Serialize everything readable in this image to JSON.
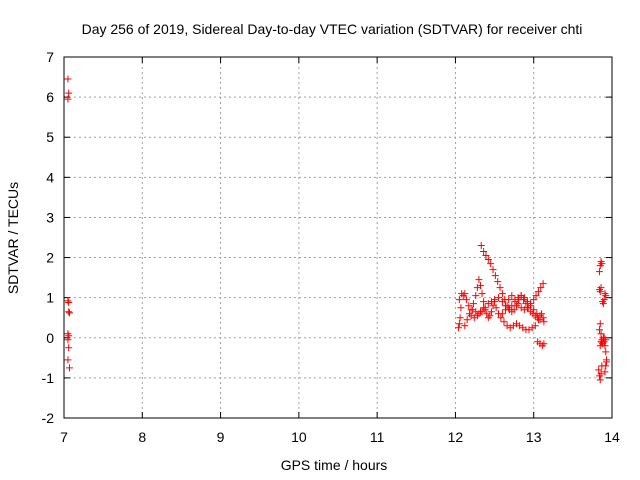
{
  "chart_data": {
    "type": "scatter",
    "title": "Day 256 of 2019, Sidereal Day-to-day VTEC variation (SDTVAR) for receiver chti",
    "xlabel": "GPS time / hours",
    "ylabel": "SDTVAR / TECUs",
    "xlim": [
      7,
      14
    ],
    "ylim": [
      -2,
      7
    ],
    "x_ticks": [
      "7",
      "8",
      "9",
      "10",
      "11",
      "12",
      "13",
      "14"
    ],
    "y_ticks": [
      "-2",
      "-1",
      "0",
      "1",
      "2",
      "3",
      "4",
      "5",
      "6",
      "7"
    ],
    "grid": true,
    "marker": "+",
    "color": "#ff0000",
    "series": [
      {
        "points": [
          [
            7.05,
            6.45
          ],
          [
            7.06,
            6.1
          ],
          [
            7.05,
            5.95
          ],
          [
            7.05,
            0.92
          ],
          [
            7.06,
            0.88
          ],
          [
            7.06,
            0.65
          ],
          [
            7.07,
            0.62
          ],
          [
            7.05,
            0.1
          ],
          [
            7.06,
            0.05
          ],
          [
            7.05,
            -0.05
          ],
          [
            7.06,
            -0.25
          ],
          [
            7.05,
            -0.55
          ],
          [
            7.07,
            -0.75
          ],
          [
            12.04,
            0.25
          ],
          [
            12.05,
            0.35
          ],
          [
            12.06,
            0.5
          ],
          [
            12.07,
            0.75
          ],
          [
            12.05,
            0.95
          ],
          [
            12.08,
            1.1
          ],
          [
            12.1,
            1.05
          ],
          [
            12.12,
            1.1
          ],
          [
            12.14,
            0.95
          ],
          [
            12.17,
            0.8
          ],
          [
            12.2,
            0.7
          ],
          [
            12.23,
            0.85
          ],
          [
            12.26,
            1.05
          ],
          [
            12.28,
            1.25
          ],
          [
            12.3,
            1.45
          ],
          [
            12.32,
            1.3
          ],
          [
            12.34,
            1.1
          ],
          [
            12.36,
            0.9
          ],
          [
            12.38,
            0.7
          ],
          [
            12.4,
            0.6
          ],
          [
            12.42,
            0.5
          ],
          [
            12.44,
            0.55
          ],
          [
            12.46,
            0.65
          ],
          [
            12.48,
            0.8
          ],
          [
            12.5,
            0.9
          ],
          [
            12.52,
            0.75
          ],
          [
            12.55,
            0.6
          ],
          [
            12.58,
            0.5
          ],
          [
            12.62,
            0.4
          ],
          [
            12.66,
            0.3
          ],
          [
            12.7,
            0.25
          ],
          [
            12.74,
            0.3
          ],
          [
            12.78,
            0.35
          ],
          [
            12.82,
            0.3
          ],
          [
            12.86,
            0.25
          ],
          [
            12.9,
            0.2
          ],
          [
            12.94,
            0.2
          ],
          [
            12.98,
            0.25
          ],
          [
            13.02,
            0.3
          ],
          [
            13.06,
            0.45
          ],
          [
            12.12,
            0.3
          ],
          [
            12.15,
            0.45
          ],
          [
            12.18,
            0.6
          ],
          [
            12.22,
            0.7
          ],
          [
            12.26,
            0.65
          ],
          [
            12.3,
            0.6
          ],
          [
            12.34,
            0.65
          ],
          [
            12.38,
            0.75
          ],
          [
            12.42,
            0.85
          ],
          [
            12.46,
            0.9
          ],
          [
            12.5,
            0.95
          ],
          [
            12.55,
            1.0
          ],
          [
            12.6,
            0.9
          ],
          [
            12.64,
            0.8
          ],
          [
            12.68,
            0.75
          ],
          [
            12.72,
            0.8
          ],
          [
            12.76,
            0.9
          ],
          [
            12.8,
            1.0
          ],
          [
            12.84,
            1.05
          ],
          [
            12.88,
            1.0
          ],
          [
            12.92,
            0.9
          ],
          [
            12.96,
            0.8
          ],
          [
            13.0,
            0.7
          ],
          [
            13.04,
            0.6
          ],
          [
            13.08,
            0.55
          ],
          [
            12.33,
            2.3
          ],
          [
            12.36,
            2.15
          ],
          [
            12.39,
            2.05
          ],
          [
            12.42,
            1.95
          ],
          [
            12.45,
            1.85
          ],
          [
            12.48,
            1.7
          ],
          [
            12.51,
            1.55
          ],
          [
            12.54,
            1.4
          ],
          [
            12.57,
            1.25
          ],
          [
            12.6,
            1.1
          ],
          [
            12.63,
            0.95
          ],
          [
            12.66,
            0.8
          ],
          [
            12.69,
            0.7
          ],
          [
            12.72,
            0.65
          ],
          [
            12.75,
            0.7
          ],
          [
            12.78,
            0.8
          ],
          [
            12.81,
            0.95
          ],
          [
            12.84,
            1.05
          ],
          [
            12.87,
            0.95
          ],
          [
            12.9,
            0.85
          ],
          [
            12.93,
            0.75
          ],
          [
            12.96,
            0.65
          ],
          [
            12.99,
            0.6
          ],
          [
            13.02,
            0.55
          ],
          [
            13.05,
            0.5
          ],
          [
            13.08,
            0.45
          ],
          [
            12.2,
            0.55
          ],
          [
            12.24,
            0.5
          ],
          [
            12.28,
            0.55
          ],
          [
            12.32,
            0.65
          ],
          [
            12.36,
            0.75
          ],
          [
            12.6,
            0.6
          ],
          [
            12.64,
            0.7
          ],
          [
            12.68,
            0.95
          ],
          [
            12.72,
            1.05
          ],
          [
            12.76,
            0.95
          ],
          [
            12.8,
            0.85
          ],
          [
            12.84,
            0.75
          ],
          [
            12.88,
            0.7
          ],
          [
            12.92,
            0.75
          ],
          [
            12.96,
            0.85
          ],
          [
            13.0,
            0.95
          ],
          [
            13.03,
            1.05
          ],
          [
            13.06,
            1.15
          ],
          [
            13.09,
            1.25
          ],
          [
            13.12,
            1.35
          ],
          [
            13.1,
            0.6
          ],
          [
            13.12,
            0.5
          ],
          [
            13.13,
            0.4
          ],
          [
            13.05,
            -0.1
          ],
          [
            13.08,
            -0.15
          ],
          [
            13.11,
            -0.2
          ],
          [
            13.13,
            -0.15
          ],
          [
            13.83,
            -0.8
          ],
          [
            13.84,
            -0.95
          ],
          [
            13.85,
            -1.05
          ],
          [
            13.86,
            -0.9
          ],
          [
            13.87,
            -0.7
          ],
          [
            13.85,
            -0.2
          ],
          [
            13.86,
            -0.1
          ],
          [
            13.87,
            -0.05
          ],
          [
            13.88,
            -0.15
          ],
          [
            13.89,
            0.0
          ],
          [
            13.84,
            0.2
          ],
          [
            13.85,
            0.35
          ],
          [
            13.86,
            0.1
          ],
          [
            13.87,
            -0.1
          ],
          [
            13.84,
            1.2
          ],
          [
            13.85,
            1.15
          ],
          [
            13.86,
            1.25
          ],
          [
            13.84,
            1.65
          ],
          [
            13.85,
            1.8
          ],
          [
            13.86,
            1.9
          ],
          [
            13.87,
            1.85
          ],
          [
            13.88,
            0.9
          ],
          [
            13.89,
            0.85
          ],
          [
            13.9,
            0.95
          ],
          [
            13.91,
            1.1
          ],
          [
            13.92,
            1.05
          ],
          [
            13.9,
            -0.1
          ],
          [
            13.91,
            -0.2
          ],
          [
            13.92,
            -0.35
          ],
          [
            13.93,
            -0.55
          ],
          [
            13.92,
            -0.7
          ],
          [
            13.91,
            -0.85
          ],
          [
            13.93,
            -0.6
          ],
          [
            13.92,
            -0.05
          ],
          [
            13.9,
            0.0
          ]
        ]
      }
    ]
  }
}
